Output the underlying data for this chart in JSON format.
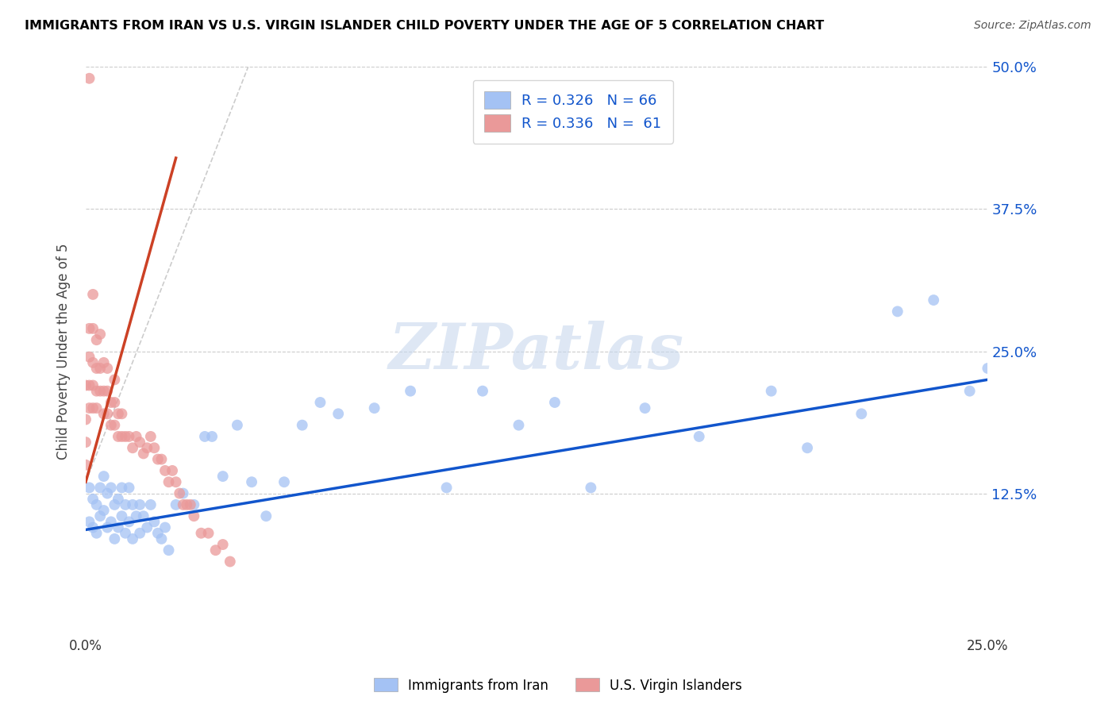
{
  "title": "IMMIGRANTS FROM IRAN VS U.S. VIRGIN ISLANDER CHILD POVERTY UNDER THE AGE OF 5 CORRELATION CHART",
  "source": "Source: ZipAtlas.com",
  "ylabel": "Child Poverty Under the Age of 5",
  "legend_label_1": "Immigrants from Iran",
  "legend_label_2": "U.S. Virgin Islanders",
  "r1": "0.326",
  "n1": "66",
  "r2": "0.336",
  "n2": "61",
  "xlim": [
    0,
    0.25
  ],
  "ylim": [
    0,
    0.5
  ],
  "ytick_labels_right": [
    "50.0%",
    "37.5%",
    "25.0%",
    "12.5%"
  ],
  "ytick_values_right": [
    0.5,
    0.375,
    0.25,
    0.125
  ],
  "color_blue": "#a4c2f4",
  "color_pink": "#ea9999",
  "color_line_blue": "#1155cc",
  "color_line_pink": "#cc4125",
  "color_dashed": "#cccccc",
  "color_title": "#000000",
  "color_source": "#555555",
  "blue_scatter_x": [
    0.001,
    0.001,
    0.002,
    0.002,
    0.003,
    0.003,
    0.004,
    0.004,
    0.005,
    0.005,
    0.006,
    0.006,
    0.007,
    0.007,
    0.008,
    0.008,
    0.009,
    0.009,
    0.01,
    0.01,
    0.011,
    0.011,
    0.012,
    0.012,
    0.013,
    0.013,
    0.014,
    0.015,
    0.015,
    0.016,
    0.017,
    0.018,
    0.019,
    0.02,
    0.021,
    0.022,
    0.023,
    0.025,
    0.027,
    0.03,
    0.033,
    0.035,
    0.038,
    0.042,
    0.046,
    0.05,
    0.055,
    0.06,
    0.065,
    0.07,
    0.08,
    0.09,
    0.1,
    0.11,
    0.12,
    0.13,
    0.14,
    0.155,
    0.17,
    0.19,
    0.2,
    0.215,
    0.225,
    0.235,
    0.245,
    0.25
  ],
  "blue_scatter_y": [
    0.13,
    0.1,
    0.12,
    0.095,
    0.115,
    0.09,
    0.13,
    0.105,
    0.14,
    0.11,
    0.125,
    0.095,
    0.13,
    0.1,
    0.115,
    0.085,
    0.12,
    0.095,
    0.13,
    0.105,
    0.115,
    0.09,
    0.13,
    0.1,
    0.115,
    0.085,
    0.105,
    0.115,
    0.09,
    0.105,
    0.095,
    0.115,
    0.1,
    0.09,
    0.085,
    0.095,
    0.075,
    0.115,
    0.125,
    0.115,
    0.175,
    0.175,
    0.14,
    0.185,
    0.135,
    0.105,
    0.135,
    0.185,
    0.205,
    0.195,
    0.2,
    0.215,
    0.13,
    0.215,
    0.185,
    0.205,
    0.13,
    0.2,
    0.175,
    0.215,
    0.165,
    0.195,
    0.285,
    0.295,
    0.215,
    0.235
  ],
  "pink_scatter_x": [
    0.0,
    0.0,
    0.0,
    0.0,
    0.001,
    0.001,
    0.001,
    0.001,
    0.001,
    0.002,
    0.002,
    0.002,
    0.002,
    0.002,
    0.003,
    0.003,
    0.003,
    0.003,
    0.004,
    0.004,
    0.004,
    0.005,
    0.005,
    0.005,
    0.006,
    0.006,
    0.006,
    0.007,
    0.007,
    0.008,
    0.008,
    0.008,
    0.009,
    0.009,
    0.01,
    0.01,
    0.011,
    0.012,
    0.013,
    0.014,
    0.015,
    0.016,
    0.017,
    0.018,
    0.019,
    0.02,
    0.021,
    0.022,
    0.023,
    0.024,
    0.025,
    0.026,
    0.027,
    0.028,
    0.029,
    0.03,
    0.032,
    0.034,
    0.036,
    0.038,
    0.04
  ],
  "pink_scatter_y": [
    0.15,
    0.17,
    0.19,
    0.22,
    0.2,
    0.22,
    0.245,
    0.27,
    0.49,
    0.2,
    0.22,
    0.24,
    0.27,
    0.3,
    0.2,
    0.215,
    0.235,
    0.26,
    0.215,
    0.235,
    0.265,
    0.195,
    0.215,
    0.24,
    0.195,
    0.215,
    0.235,
    0.185,
    0.205,
    0.185,
    0.205,
    0.225,
    0.175,
    0.195,
    0.175,
    0.195,
    0.175,
    0.175,
    0.165,
    0.175,
    0.17,
    0.16,
    0.165,
    0.175,
    0.165,
    0.155,
    0.155,
    0.145,
    0.135,
    0.145,
    0.135,
    0.125,
    0.115,
    0.115,
    0.115,
    0.105,
    0.09,
    0.09,
    0.075,
    0.08,
    0.065
  ],
  "blue_trend_x": [
    0.0,
    0.25
  ],
  "blue_trend_y": [
    0.093,
    0.225
  ],
  "pink_trend_x": [
    0.0,
    0.025
  ],
  "pink_trend_y": [
    0.135,
    0.42
  ],
  "dashed_line_x": [
    0.0,
    0.045
  ],
  "dashed_line_y": [
    0.135,
    0.5
  ],
  "watermark_text": "ZIPatlas",
  "watermark_color": "#c8d8ee",
  "bg_color": "#ffffff"
}
